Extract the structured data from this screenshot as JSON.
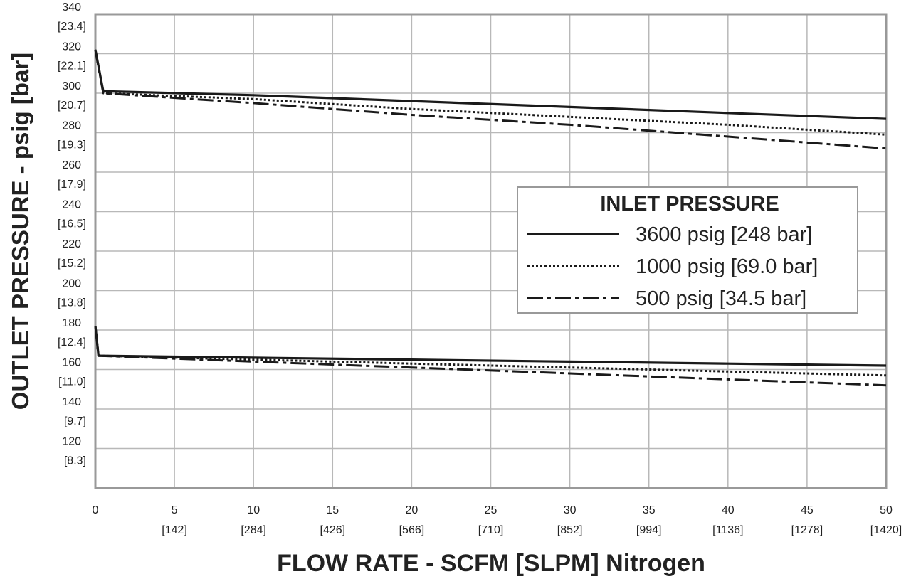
{
  "chart_data": {
    "type": "line",
    "xlabel": "FLOW RATE - SCFM [SLPM] Nitrogen",
    "ylabel": "OUTLET PRESSURE - psig [bar]",
    "xlim": [
      0,
      50
    ],
    "ylim": [
      100,
      340
    ],
    "grid": true,
    "x_ticks": [
      {
        "v": 0,
        "label": "0",
        "sub": ""
      },
      {
        "v": 5,
        "label": "5",
        "sub": "[142]"
      },
      {
        "v": 10,
        "label": "10",
        "sub": "[284]"
      },
      {
        "v": 15,
        "label": "15",
        "sub": "[426]"
      },
      {
        "v": 20,
        "label": "20",
        "sub": "[566]"
      },
      {
        "v": 25,
        "label": "25",
        "sub": "[710]"
      },
      {
        "v": 30,
        "label": "30",
        "sub": "[852]"
      },
      {
        "v": 35,
        "label": "35",
        "sub": "[994]"
      },
      {
        "v": 40,
        "label": "40",
        "sub": "[1136]"
      },
      {
        "v": 45,
        "label": "45",
        "sub": "[1278]"
      },
      {
        "v": 50,
        "label": "50",
        "sub": "[1420]"
      }
    ],
    "y_ticks": [
      {
        "v": 340,
        "label": "340",
        "sub": "[23.4]"
      },
      {
        "v": 320,
        "label": "320",
        "sub": "[22.1]"
      },
      {
        "v": 300,
        "label": "300",
        "sub": "[20.7]"
      },
      {
        "v": 280,
        "label": "280",
        "sub": "[19.3]"
      },
      {
        "v": 260,
        "label": "260",
        "sub": "[17.9]"
      },
      {
        "v": 240,
        "label": "240",
        "sub": "[16.5]"
      },
      {
        "v": 220,
        "label": "220",
        "sub": "[15.2]"
      },
      {
        "v": 200,
        "label": "200",
        "sub": "[13.8]"
      },
      {
        "v": 180,
        "label": "180",
        "sub": "[12.4]"
      },
      {
        "v": 160,
        "label": "160",
        "sub": "[11.0]"
      },
      {
        "v": 140,
        "label": "140",
        "sub": "[9.7]"
      },
      {
        "v": 120,
        "label": "120",
        "sub": "[8.3]"
      }
    ],
    "legend": {
      "title": "INLET PRESSURE",
      "placement": "right"
    },
    "series": [
      {
        "name": "3600 psig [248 bar]",
        "style": "solid",
        "curve": "high",
        "points": [
          [
            0,
            322
          ],
          [
            0.5,
            301
          ],
          [
            10,
            299
          ],
          [
            20,
            296
          ],
          [
            30,
            293
          ],
          [
            40,
            290
          ],
          [
            50,
            287
          ]
        ]
      },
      {
        "name": "1000 psig [69.0 bar]",
        "style": "dotted",
        "curve": "high",
        "points": [
          [
            0,
            322
          ],
          [
            0.5,
            300
          ],
          [
            10,
            297
          ],
          [
            20,
            292
          ],
          [
            30,
            288
          ],
          [
            40,
            284
          ],
          [
            50,
            279
          ]
        ]
      },
      {
        "name": "500 psig [34.5 bar]",
        "style": "dashdot",
        "curve": "high",
        "points": [
          [
            0,
            322
          ],
          [
            0.5,
            300
          ],
          [
            10,
            295
          ],
          [
            20,
            289
          ],
          [
            30,
            284
          ],
          [
            40,
            278
          ],
          [
            50,
            272
          ]
        ]
      },
      {
        "name": "3600 psig [248 bar]",
        "style": "solid",
        "curve": "low",
        "points": [
          [
            0,
            182
          ],
          [
            0.2,
            167
          ],
          [
            10,
            166
          ],
          [
            20,
            165
          ],
          [
            30,
            164
          ],
          [
            40,
            163
          ],
          [
            50,
            162
          ]
        ]
      },
      {
        "name": "1000 psig [69.0 bar]",
        "style": "dotted",
        "curve": "low",
        "points": [
          [
            0,
            182
          ],
          [
            0.2,
            167
          ],
          [
            10,
            165
          ],
          [
            20,
            163
          ],
          [
            30,
            161
          ],
          [
            40,
            159
          ],
          [
            50,
            157
          ]
        ]
      },
      {
        "name": "500 psig [34.5 bar]",
        "style": "dashdot",
        "curve": "low",
        "points": [
          [
            0,
            182
          ],
          [
            0.2,
            167
          ],
          [
            10,
            164
          ],
          [
            20,
            161
          ],
          [
            30,
            158
          ],
          [
            40,
            155
          ],
          [
            50,
            152
          ]
        ]
      }
    ],
    "colors": {
      "line": "#1a1a1a",
      "grid": "#b8b8b8",
      "frame": "#999999",
      "text": "#222222"
    }
  }
}
